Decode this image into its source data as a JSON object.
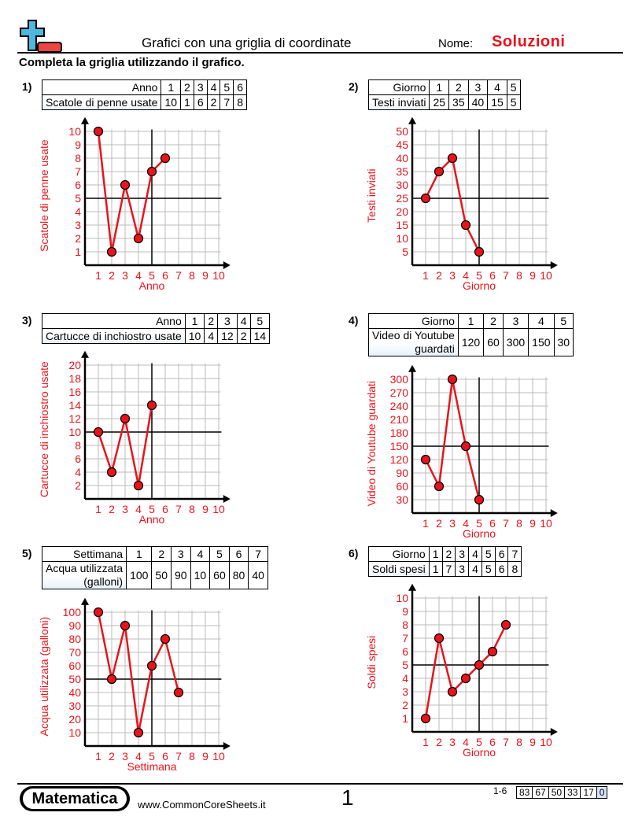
{
  "header": {
    "title": "Grafici con una griglia di coordinate",
    "name_label": "Nome:",
    "name_value": "Soluzioni",
    "instructions": "Completa la griglia utilizzando il grafico."
  },
  "colors": {
    "accent": "#e8141b",
    "logo_blue": "#4fb6de",
    "logo_red": "#ef4444",
    "grid": "#bbbbbb"
  },
  "problems": [
    {
      "number": "1)",
      "x_label": "Anno",
      "y_label": "Scatole di penne usate"
    },
    {
      "number": "2)",
      "x_label": "Giorno",
      "y_label": "Testi inviati"
    },
    {
      "number": "3)",
      "x_label": "Anno",
      "y_label": "Cartucce di inchiostro usate"
    },
    {
      "number": "4)",
      "x_label": "Giorno",
      "y_label": "Video di Youtube\nguardati"
    },
    {
      "number": "5)",
      "x_label": "Settimana",
      "y_label": "Acqua utilizzata\n(galloni)"
    },
    {
      "number": "6)",
      "x_label": "Giorno",
      "y_label": "Soldi spesi"
    }
  ],
  "chart_data": [
    {
      "type": "line",
      "x": [
        1,
        2,
        3,
        4,
        5,
        6
      ],
      "values": [
        10,
        1,
        6,
        2,
        7,
        8
      ],
      "xlabel": "Anno",
      "ylabel": "Scatole di penne usate",
      "x_ticks": [
        "1",
        "2",
        "3",
        "4",
        "5",
        "6",
        "7",
        "8",
        "9",
        "10"
      ],
      "y_ticks": [
        "1",
        "2",
        "3",
        "4",
        "5",
        "6",
        "7",
        "8",
        "9",
        "10"
      ],
      "xlim": [
        0,
        10
      ],
      "ylim": [
        0,
        10
      ],
      "reference_lines": {
        "x": 5,
        "y": 5
      },
      "grid": true
    },
    {
      "type": "line",
      "x": [
        1,
        2,
        3,
        4,
        5
      ],
      "values": [
        25,
        35,
        40,
        15,
        5
      ],
      "xlabel": "Giorno",
      "ylabel": "Testi inviati",
      "x_ticks": [
        "1",
        "2",
        "3",
        "4",
        "5",
        "6",
        "7",
        "8",
        "9",
        "10"
      ],
      "y_ticks": [
        "5",
        "10",
        "15",
        "20",
        "25",
        "30",
        "35",
        "40",
        "45",
        "50"
      ],
      "xlim": [
        0,
        10
      ],
      "ylim": [
        0,
        50
      ],
      "reference_lines": {
        "x": 5,
        "y": 25
      },
      "grid": true
    },
    {
      "type": "line",
      "x": [
        1,
        2,
        3,
        4,
        5
      ],
      "values": [
        10,
        4,
        12,
        2,
        14
      ],
      "xlabel": "Anno",
      "ylabel": "Cartucce di inchiostro usate",
      "x_ticks": [
        "1",
        "2",
        "3",
        "4",
        "5",
        "6",
        "7",
        "8",
        "9",
        "10"
      ],
      "y_ticks": [
        "2",
        "4",
        "6",
        "8",
        "10",
        "12",
        "14",
        "16",
        "18",
        "20"
      ],
      "xlim": [
        0,
        10
      ],
      "ylim": [
        0,
        20
      ],
      "reference_lines": {
        "x": 5,
        "y": 10
      },
      "grid": true
    },
    {
      "type": "line",
      "x": [
        1,
        2,
        3,
        4,
        5
      ],
      "values": [
        120,
        60,
        300,
        150,
        30
      ],
      "xlabel": "Giorno",
      "ylabel": "Video di Youtube guardati",
      "x_ticks": [
        "1",
        "2",
        "3",
        "4",
        "5",
        "6",
        "7",
        "8",
        "9",
        "10"
      ],
      "y_ticks": [
        "30",
        "60",
        "90",
        "120",
        "150",
        "180",
        "210",
        "240",
        "270",
        "300"
      ],
      "xlim": [
        0,
        10
      ],
      "ylim": [
        0,
        300
      ],
      "reference_lines": {
        "x": 5,
        "y": 150
      },
      "grid": true
    },
    {
      "type": "line",
      "x": [
        1,
        2,
        3,
        4,
        5,
        6,
        7
      ],
      "values": [
        100,
        50,
        90,
        10,
        60,
        80,
        40
      ],
      "xlabel": "Settimana",
      "ylabel": "Acqua utilizzata (galloni)",
      "x_ticks": [
        "1",
        "2",
        "3",
        "4",
        "5",
        "6",
        "7",
        "8",
        "9",
        "10"
      ],
      "y_ticks": [
        "10",
        "20",
        "30",
        "40",
        "50",
        "60",
        "70",
        "80",
        "90",
        "100"
      ],
      "xlim": [
        0,
        10
      ],
      "ylim": [
        0,
        100
      ],
      "reference_lines": {
        "x": 5,
        "y": 50
      },
      "grid": true
    },
    {
      "type": "line",
      "x": [
        1,
        2,
        3,
        4,
        5,
        6,
        7
      ],
      "values": [
        1,
        7,
        3,
        4,
        5,
        6,
        8
      ],
      "xlabel": "Giorno",
      "ylabel": "Soldi spesi",
      "x_ticks": [
        "1",
        "2",
        "3",
        "4",
        "5",
        "6",
        "7",
        "8",
        "9",
        "10"
      ],
      "y_ticks": [
        "1",
        "2",
        "3",
        "4",
        "5",
        "6",
        "7",
        "8",
        "9",
        "10"
      ],
      "xlim": [
        0,
        10
      ],
      "ylim": [
        0,
        10
      ],
      "reference_lines": {
        "x": 5,
        "y": 5
      },
      "grid": true
    }
  ],
  "tables": [
    {
      "row1_label": "Anno",
      "row1": [
        "1",
        "2",
        "3",
        "4",
        "5",
        "6"
      ],
      "row2_label": "Scatole di penne usate",
      "row2": [
        "10",
        "1",
        "6",
        "2",
        "7",
        "8"
      ]
    },
    {
      "row1_label": "Giorno",
      "row1": [
        "1",
        "2",
        "3",
        "4",
        "5"
      ],
      "row2_label": "Testi inviati",
      "row2": [
        "25",
        "35",
        "40",
        "15",
        "5"
      ]
    },
    {
      "row1_label": "Anno",
      "row1": [
        "1",
        "2",
        "3",
        "4",
        "5"
      ],
      "row2_label": "Cartucce di inchiostro usate",
      "row2": [
        "10",
        "4",
        "12",
        "2",
        "14"
      ]
    },
    {
      "row1_label": "Giorno",
      "row1": [
        "1",
        "2",
        "3",
        "4",
        "5"
      ],
      "row2_label": "Video di Youtube\nguardati",
      "row2": [
        "120",
        "60",
        "300",
        "150",
        "30"
      ]
    },
    {
      "row1_label": "Settimana",
      "row1": [
        "1",
        "2",
        "3",
        "4",
        "5",
        "6",
        "7"
      ],
      "row2_label": "Acqua utilizzata\n(galloni)",
      "row2": [
        "100",
        "50",
        "90",
        "10",
        "60",
        "80",
        "40"
      ]
    },
    {
      "row1_label": "Giorno",
      "row1": [
        "1",
        "2",
        "3",
        "4",
        "5",
        "6",
        "7"
      ],
      "row2_label": "Soldi spesi",
      "row2": [
        "1",
        "7",
        "3",
        "4",
        "5",
        "6",
        "8"
      ]
    }
  ],
  "footer": {
    "brand": "Matematica",
    "url": "www.CommonCoreSheets.it",
    "page_number": "1",
    "range_label": "1-6",
    "scores": [
      "83",
      "67",
      "50",
      "33",
      "17",
      "0"
    ]
  }
}
